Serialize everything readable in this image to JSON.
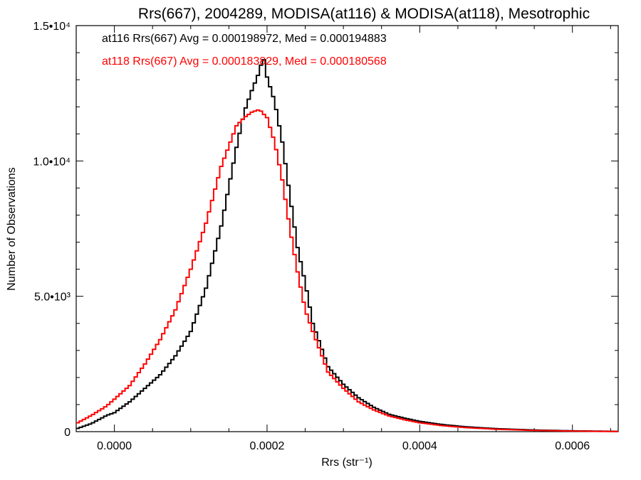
{
  "chart_data": {
    "type": "line",
    "title": "Rrs(667), 2004289, MODISA(at116) & MODISA(at118), Mesotrophic",
    "xlabel": "Rrs (str⁻¹)",
    "ylabel": "Number of Observations",
    "xlim": [
      -5e-05,
      0.00066
    ],
    "ylim": [
      0,
      15000
    ],
    "x_ticks": [
      {
        "value": 0.0,
        "label": "0.0000"
      },
      {
        "value": 0.0002,
        "label": "0.0002"
      },
      {
        "value": 0.0004,
        "label": "0.0004"
      },
      {
        "value": 0.0006,
        "label": "0.0006"
      }
    ],
    "y_ticks": [
      {
        "value": 0,
        "label": "0"
      },
      {
        "value": 5000,
        "label": "5.0•10³"
      },
      {
        "value": 10000,
        "label": "1.0•10⁴"
      },
      {
        "value": 15000,
        "label": "1.5•10⁴"
      }
    ],
    "grid": false,
    "legend_position": "top-left",
    "series": [
      {
        "name": "at116",
        "color": "#000000",
        "stat_text": "at116 Rrs(667) Avg = 0.000198972, Med = 0.000194883",
        "x": [
          -5e-05,
          -3e-05,
          -1e-05,
          0.0,
          2e-05,
          4e-05,
          6e-05,
          8e-05,
          0.0001,
          0.00012,
          0.00014,
          0.00016,
          0.00017,
          0.00018,
          0.00019,
          0.000195,
          0.0002,
          0.00021,
          0.00022,
          0.00023,
          0.00024,
          0.00025,
          0.00026,
          0.00028,
          0.0003,
          0.00032,
          0.00034,
          0.00036,
          0.00038,
          0.0004,
          0.00043,
          0.00046,
          0.0005,
          0.00055,
          0.0006,
          0.00066
        ],
        "values": [
          100,
          300,
          600,
          700,
          1100,
          1600,
          2100,
          2800,
          3700,
          5300,
          7600,
          10500,
          11800,
          12600,
          13300,
          13900,
          13100,
          12200,
          10700,
          8700,
          6800,
          5500,
          4000,
          2400,
          1750,
          1250,
          900,
          640,
          500,
          380,
          260,
          180,
          110,
          60,
          30,
          10
        ]
      },
      {
        "name": "at118",
        "color": "#ff0000",
        "stat_text": "at118 Rrs(667) Avg = 0.000183829, Med = 0.000180568",
        "x": [
          -5e-05,
          -3e-05,
          -1e-05,
          0.0,
          2e-05,
          4e-05,
          6e-05,
          8e-05,
          0.0001,
          0.00012,
          0.00014,
          0.00016,
          0.00017,
          0.00018,
          0.00019,
          0.0002,
          0.00021,
          0.00022,
          0.00023,
          0.00024,
          0.00025,
          0.00026,
          0.00028,
          0.0003,
          0.00032,
          0.00034,
          0.00036,
          0.00038,
          0.0004,
          0.00043,
          0.00046,
          0.0005,
          0.00055,
          0.0006,
          0.00066
        ],
        "values": [
          300,
          600,
          950,
          1200,
          1700,
          2500,
          3400,
          4500,
          6000,
          7700,
          9800,
          11300,
          11600,
          11800,
          11900,
          11600,
          10700,
          9300,
          7500,
          5900,
          4500,
          3700,
          2200,
          1600,
          1100,
          800,
          580,
          440,
          330,
          220,
          150,
          90,
          45,
          20,
          5
        ]
      }
    ]
  }
}
